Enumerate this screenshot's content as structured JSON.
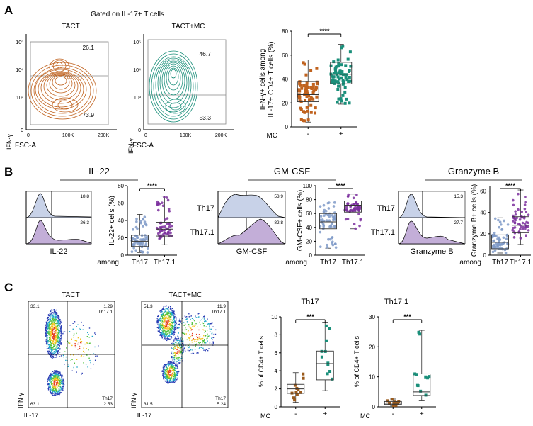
{
  "panels": {
    "a": {
      "letter": "A",
      "gate_title": "Gated on IL-17+ T cells",
      "plot1_title": "TACT",
      "plot2_title": "TACT+MC",
      "ylabel": "IFN-γ",
      "xlabel": "FSC-A",
      "x_ticks": [
        "0",
        "100K",
        "200K"
      ],
      "y_ticks": [
        "0",
        "10³",
        "10⁴",
        "10⁵"
      ],
      "plot1_upper_pct": "26.1",
      "plot1_lower_pct": "73.9",
      "plot2_upper_pct": "46.7",
      "plot2_lower_pct": "53.3",
      "box_ylabel": "IFN-γ+ cells among IL-17+ CD4+ T cells (%)",
      "box_yticks": [
        "0",
        "20",
        "40",
        "60",
        "80"
      ],
      "mc_label": "MC",
      "mc_values": [
        "-",
        "+"
      ],
      "significance": "****",
      "colors": {
        "tact": "#c0621e",
        "mc": "#1a8f7a"
      }
    },
    "b": {
      "letter": "B",
      "among_label": "among",
      "sub": [
        {
          "marker": "IL-22",
          "th17_pct": "18.8",
          "th171_pct": "26.3",
          "ylabel": "IL-22+ cells (%)",
          "yticks": [
            "0",
            "20",
            "40",
            "60",
            "80"
          ],
          "sig": "****",
          "cat1": "Th17",
          "cat2": "Th17.1",
          "row1": "",
          "row2": ""
        },
        {
          "marker": "GM-CSF",
          "th17_pct": "53.9",
          "th171_pct": "82.8",
          "ylabel": "GM-CSF+ cells (%)",
          "yticks": [
            "0",
            "20",
            "40",
            "60",
            "80",
            "100"
          ],
          "sig": "****",
          "cat1": "Th17",
          "cat2": "Th17.1",
          "row1": "Th17",
          "row2": "Th17.1"
        },
        {
          "marker": "Granzyme B",
          "th17_pct": "15.3",
          "th171_pct": "27.7",
          "ylabel": "Granzyme B+ cells (%)",
          "yticks": [
            "0",
            "20",
            "40",
            "60"
          ],
          "sig": "****",
          "cat1": "Th17",
          "cat2": "Th17.1",
          "row1": "Th17",
          "row2": "Th17.1"
        }
      ],
      "row_labels_first": [
        "Th17",
        "Th17.1"
      ],
      "colors": {
        "th17": "#7f9ac8",
        "th171": "#7b2f9e"
      }
    },
    "c": {
      "letter": "C",
      "plot1_title": "TACT",
      "plot2_title": "TACT+MC",
      "ylabel": "IFN-γ",
      "xlabel": "IL-17",
      "plot1_q": {
        "ul": "33.1",
        "ur": "1.29",
        "ur_label": "Th17.1",
        "ll": "63.1",
        "lr_label": "Th17",
        "lr": "2.53"
      },
      "plot2_q": {
        "ul": "51.3",
        "ur": "11.9",
        "ur_label": "Th17.1",
        "ll": "31.5",
        "lr_label": "Th17",
        "lr": "5.24"
      },
      "box1_title": "Th17",
      "box2_title": "Th17.1",
      "box1_yticks": [
        "0",
        "2",
        "4",
        "6",
        "8",
        "10"
      ],
      "box2_yticks": [
        "0",
        "10",
        "20",
        "30"
      ],
      "box_ylabel": "% of CD4+ T cells",
      "mc_label": "MC",
      "mc_values": [
        "-",
        "+"
      ],
      "sig": "***",
      "colors": {
        "tact": "#9a5a1c",
        "mc": "#1a8f7a"
      }
    }
  },
  "chart_data": [
    {
      "type": "box",
      "title": "",
      "ylabel": "IFN-γ+ cells among IL-17+ CD4+ T cells (%)",
      "ylim": [
        0,
        80
      ],
      "categories": [
        "-",
        "+"
      ],
      "series": [
        {
          "name": "TACT",
          "min": 4,
          "q1": 21,
          "median": 27,
          "q3": 38,
          "max": 56
        },
        {
          "name": "TACT+MC",
          "min": 19,
          "q1": 36,
          "median": 44,
          "q3": 54,
          "max": 69
        }
      ]
    },
    {
      "type": "box",
      "title": "IL-22",
      "ylabel": "IL-22+ cells (%)",
      "ylim": [
        0,
        80
      ],
      "categories": [
        "Th17",
        "Th17.1"
      ],
      "series": [
        {
          "name": "Th17",
          "min": 3,
          "q1": 10,
          "median": 16,
          "q3": 23,
          "max": 47
        },
        {
          "name": "Th17.1",
          "min": 12,
          "q1": 22,
          "median": 30,
          "q3": 38,
          "max": 68
        }
      ]
    },
    {
      "type": "box",
      "title": "GM-CSF",
      "ylabel": "GM-CSF+ cells (%)",
      "ylim": [
        0,
        100
      ],
      "categories": [
        "Th17",
        "Th17.1"
      ],
      "series": [
        {
          "name": "Th17",
          "min": 10,
          "q1": 38,
          "median": 48,
          "q3": 60,
          "max": 78
        },
        {
          "name": "Th17.1",
          "min": 38,
          "q1": 62,
          "median": 72,
          "q3": 78,
          "max": 88
        }
      ]
    },
    {
      "type": "box",
      "title": "Granzyme B",
      "ylabel": "Granzyme B+ cells (%)",
      "ylim": [
        0,
        65
      ],
      "categories": [
        "Th17",
        "Th17.1"
      ],
      "series": [
        {
          "name": "Th17",
          "min": 2,
          "q1": 6,
          "median": 12,
          "q3": 19,
          "max": 35
        },
        {
          "name": "Th17.1",
          "min": 10,
          "q1": 21,
          "median": 28,
          "q3": 36,
          "max": 61
        }
      ]
    },
    {
      "type": "box",
      "title": "Th17",
      "ylabel": "% of CD4+ T cells",
      "ylim": [
        0,
        10
      ],
      "categories": [
        "-",
        "+"
      ],
      "series": [
        {
          "name": "TACT",
          "min": 0.5,
          "q1": 1.5,
          "median": 2.0,
          "q3": 2.5,
          "max": 3.8
        },
        {
          "name": "TACT+MC",
          "min": 1.8,
          "q1": 3.0,
          "median": 4.8,
          "q3": 6.2,
          "max": 9.4
        }
      ]
    },
    {
      "type": "box",
      "title": "Th17.1",
      "ylabel": "% of CD4+ T cells",
      "ylim": [
        0,
        30
      ],
      "categories": [
        "-",
        "+"
      ],
      "series": [
        {
          "name": "TACT",
          "min": 0.3,
          "q1": 0.8,
          "median": 1.2,
          "q3": 1.8,
          "max": 2.6
        },
        {
          "name": "TACT+MC",
          "min": 2.0,
          "q1": 3.8,
          "median": 5.0,
          "q3": 11.0,
          "max": 25.5
        }
      ]
    }
  ]
}
